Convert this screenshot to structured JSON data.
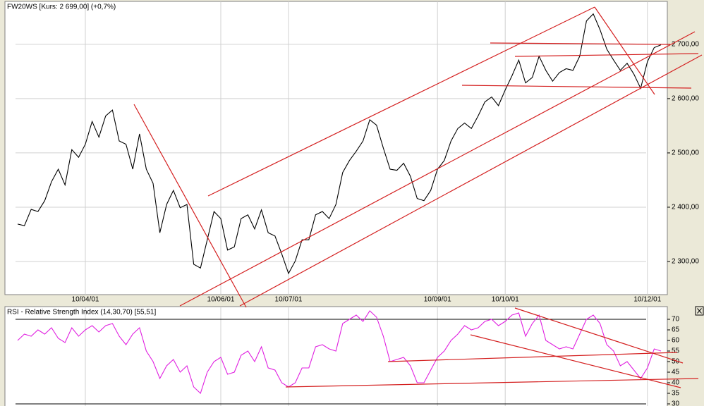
{
  "chart_data": [
    {
      "type": "line",
      "title": "FW20WS [Kurs: 2 699,00] (+0,7%)",
      "categories": [
        null,
        null,
        null,
        null,
        null,
        null,
        null,
        null,
        null,
        null,
        "10/04/01",
        null,
        null,
        null,
        null,
        null,
        null,
        null,
        null,
        null,
        null,
        null,
        null,
        null,
        null,
        null,
        null,
        null,
        null,
        null,
        "10/06/01",
        null,
        null,
        null,
        null,
        null,
        null,
        null,
        null,
        null,
        "10/07/01",
        null,
        null,
        null,
        null,
        null,
        null,
        null,
        null,
        null,
        null,
        null,
        null,
        null,
        null,
        null,
        null,
        null,
        null,
        null,
        null,
        null,
        "10/09/01",
        null,
        null,
        null,
        null,
        null,
        null,
        null,
        null,
        null,
        "10/10/01",
        null,
        null,
        null,
        null,
        null,
        null,
        null,
        null,
        null,
        null,
        null,
        null,
        null,
        null,
        null,
        null,
        null,
        null,
        null,
        null,
        "10/12/01",
        null,
        null
      ],
      "series": [
        {
          "color": "#000000",
          "values": [
            2369,
            2366,
            2396,
            2392,
            2412,
            2447,
            2470,
            2441,
            2506,
            2492,
            2516,
            2558,
            2529,
            2568,
            2579,
            2522,
            2516,
            2470,
            2535,
            2470,
            2444,
            2353,
            2405,
            2431,
            2399,
            2405,
            2295,
            2288,
            2340,
            2392,
            2379,
            2321,
            2327,
            2379,
            2386,
            2360,
            2395,
            2353,
            2347,
            2314,
            2278,
            2301,
            2340,
            2340,
            2386,
            2392,
            2379,
            2405,
            2464,
            2486,
            2503,
            2522,
            2561,
            2551,
            2509,
            2470,
            2468,
            2481,
            2457,
            2416,
            2412,
            2431,
            2470,
            2486,
            2522,
            2545,
            2555,
            2545,
            2568,
            2594,
            2603,
            2587,
            2616,
            2642,
            2671,
            2629,
            2639,
            2678,
            2652,
            2632,
            2648,
            2655,
            2652,
            2678,
            2743,
            2756,
            2727,
            2691,
            2671,
            2652,
            2665,
            2645,
            2619,
            2668,
            2694,
            2699
          ]
        }
      ],
      "ylim": [
        2239,
        2779
      ],
      "yticks": [
        {
          "value": 2300,
          "label": "2 300,00"
        },
        {
          "value": 2400,
          "label": "2 400,00"
        },
        {
          "value": 2500,
          "label": "2 500,00"
        },
        {
          "value": 2600,
          "label": "2 600,00"
        },
        {
          "value": 2700,
          "label": "2 700,00"
        }
      ],
      "grid": true
    },
    {
      "type": "line",
      "title": "RSI - Relative Strength Index (14,30,70) [55,51]",
      "series": [
        {
          "color": "#e020e0",
          "values": [
            60,
            63,
            62,
            65,
            63,
            66,
            61,
            59,
            66,
            62,
            65,
            67,
            64,
            67,
            68,
            62,
            58,
            63,
            66,
            55,
            50,
            42,
            48,
            51,
            45,
            48,
            38,
            35,
            45,
            50,
            52,
            44,
            45,
            53,
            55,
            50,
            57,
            47,
            46,
            40,
            38,
            40,
            47,
            47,
            57,
            58,
            56,
            55,
            68,
            70,
            72,
            69,
            74,
            71,
            62,
            50,
            51,
            52,
            48,
            40,
            40,
            46,
            52,
            55,
            60,
            63,
            67,
            65,
            66,
            69,
            70,
            67,
            69,
            72,
            73,
            62,
            68,
            72,
            60,
            58,
            56,
            57,
            56,
            63,
            70,
            72,
            68,
            58,
            55,
            48,
            50,
            46,
            42,
            47,
            56,
            55
          ]
        }
      ],
      "ylim": [
        29,
        76
      ],
      "yticks": [
        30,
        35,
        40,
        45,
        50,
        55,
        60,
        65,
        70
      ],
      "grid": true
    }
  ]
}
